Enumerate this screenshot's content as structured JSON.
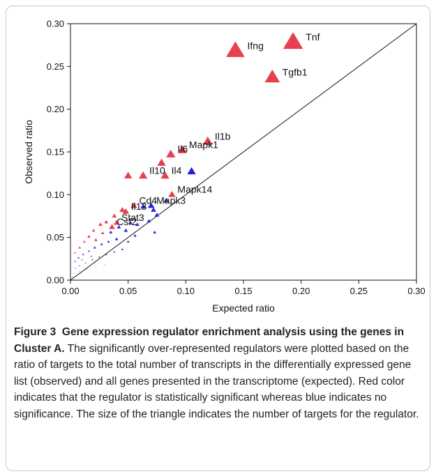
{
  "caption": {
    "label": "Figure 3",
    "title": "Gene expression regulator enrichment analysis using the genes in Cluster A.",
    "body": "The significantly over-represented regulators were plotted based on the ratio of targets to the total number of transcripts in the differentially expressed gene list (observed) and all genes presented in the transcriptome (expected). Red color indicates that the regulator is statistically significant whereas blue indicates no significance. The size of the triangle indicates the number of targets for the regulator."
  },
  "chart_data": {
    "type": "scatter",
    "xlabel": "Expected ratio",
    "ylabel": "Observed ratio",
    "xlim": [
      0,
      0.3
    ],
    "ylim": [
      0,
      0.3
    ],
    "xticks": [
      "0.00",
      "0.05",
      "0.10",
      "0.15",
      "0.20",
      "0.25",
      "0.30"
    ],
    "yticks": [
      "0.00",
      "0.05",
      "0.10",
      "0.15",
      "0.20",
      "0.25",
      "0.30"
    ],
    "diagonal": [
      [
        0,
        0
      ],
      [
        0.3,
        0.3
      ]
    ],
    "colors": {
      "significant": "#e8404f",
      "not_significant": "#2222dd"
    },
    "labeled_points": [
      {
        "label": "Tnf",
        "x": 0.193,
        "y": 0.278,
        "size": 3.0,
        "sig": true
      },
      {
        "label": "Ifng",
        "x": 0.143,
        "y": 0.268,
        "size": 2.8,
        "sig": true
      },
      {
        "label": "Tgfb1",
        "x": 0.175,
        "y": 0.237,
        "size": 2.3,
        "sig": true
      },
      {
        "label": "Il1b",
        "x": 0.119,
        "y": 0.162,
        "size": 1.5,
        "sig": true
      },
      {
        "label": "Mapk1",
        "x": 0.097,
        "y": 0.152,
        "size": 1.4,
        "sig": true
      },
      {
        "label": "Il6",
        "x": 0.087,
        "y": 0.147,
        "size": 1.4,
        "sig": true
      },
      {
        "label": "Il10",
        "x": 0.063,
        "y": 0.122,
        "size": 1.3,
        "sig": true
      },
      {
        "label": "Il4",
        "x": 0.082,
        "y": 0.122,
        "size": 1.3,
        "sig": true
      },
      {
        "label": "Mapk14",
        "x": 0.088,
        "y": 0.1,
        "size": 1.1,
        "sig": true
      },
      {
        "label": "Mapk3",
        "x": 0.07,
        "y": 0.087,
        "size": 1.0,
        "sig": false
      },
      {
        "label": "Cd4",
        "x": 0.055,
        "y": 0.087,
        "size": 1.0,
        "sig": true
      },
      {
        "label": "Il13",
        "x": 0.048,
        "y": 0.08,
        "size": 1.0,
        "sig": true
      },
      {
        "label": "Stat3",
        "x": 0.04,
        "y": 0.067,
        "size": 0.9,
        "sig": true
      },
      {
        "label": "Csf2",
        "x": 0.036,
        "y": 0.062,
        "size": 0.9,
        "sig": true
      }
    ],
    "points": [
      {
        "x": 0.079,
        "y": 0.137,
        "size": 1.3,
        "sig": true
      },
      {
        "x": 0.05,
        "y": 0.122,
        "size": 1.2,
        "sig": true
      },
      {
        "x": 0.105,
        "y": 0.127,
        "size": 1.3,
        "sig": false
      },
      {
        "x": 0.072,
        "y": 0.082,
        "size": 0.8,
        "sig": false
      },
      {
        "x": 0.075,
        "y": 0.076,
        "size": 0.7,
        "sig": false
      },
      {
        "x": 0.083,
        "y": 0.093,
        "size": 0.8,
        "sig": false
      },
      {
        "x": 0.063,
        "y": 0.086,
        "size": 0.8,
        "sig": false
      },
      {
        "x": 0.068,
        "y": 0.069,
        "size": 0.6,
        "sig": false
      },
      {
        "x": 0.073,
        "y": 0.056,
        "size": 0.5,
        "sig": false
      },
      {
        "x": 0.045,
        "y": 0.082,
        "size": 0.9,
        "sig": true
      },
      {
        "x": 0.038,
        "y": 0.075,
        "size": 0.7,
        "sig": true
      },
      {
        "x": 0.031,
        "y": 0.068,
        "size": 0.6,
        "sig": true
      },
      {
        "x": 0.026,
        "y": 0.065,
        "size": 0.6,
        "sig": true
      },
      {
        "x": 0.02,
        "y": 0.058,
        "size": 0.5,
        "sig": true
      },
      {
        "x": 0.016,
        "y": 0.051,
        "size": 0.5,
        "sig": true
      },
      {
        "x": 0.012,
        "y": 0.045,
        "size": 0.4,
        "sig": true
      },
      {
        "x": 0.008,
        "y": 0.038,
        "size": 0.4,
        "sig": true
      },
      {
        "x": 0.004,
        "y": 0.032,
        "size": 0.3,
        "sig": true
      },
      {
        "x": 0.022,
        "y": 0.047,
        "size": 0.5,
        "sig": true
      },
      {
        "x": 0.028,
        "y": 0.055,
        "size": 0.5,
        "sig": true
      },
      {
        "x": 0.035,
        "y": 0.056,
        "size": 0.5,
        "sig": false
      },
      {
        "x": 0.042,
        "y": 0.062,
        "size": 0.6,
        "sig": false
      },
      {
        "x": 0.048,
        "y": 0.058,
        "size": 0.6,
        "sig": false
      },
      {
        "x": 0.052,
        "y": 0.067,
        "size": 0.6,
        "sig": false
      },
      {
        "x": 0.058,
        "y": 0.065,
        "size": 0.6,
        "sig": false
      },
      {
        "x": 0.04,
        "y": 0.048,
        "size": 0.5,
        "sig": false
      },
      {
        "x": 0.033,
        "y": 0.045,
        "size": 0.4,
        "sig": false
      },
      {
        "x": 0.027,
        "y": 0.042,
        "size": 0.4,
        "sig": false
      },
      {
        "x": 0.021,
        "y": 0.038,
        "size": 0.4,
        "sig": false
      },
      {
        "x": 0.016,
        "y": 0.034,
        "size": 0.3,
        "sig": false
      },
      {
        "x": 0.011,
        "y": 0.03,
        "size": 0.3,
        "sig": false
      },
      {
        "x": 0.007,
        "y": 0.026,
        "size": 0.3,
        "sig": false
      },
      {
        "x": 0.004,
        "y": 0.022,
        "size": 0.25,
        "sig": false
      },
      {
        "x": 0.045,
        "y": 0.036,
        "size": 0.35,
        "sig": false
      },
      {
        "x": 0.038,
        "y": 0.033,
        "size": 0.3,
        "sig": false
      },
      {
        "x": 0.031,
        "y": 0.03,
        "size": 0.3,
        "sig": false
      },
      {
        "x": 0.025,
        "y": 0.027,
        "size": 0.25,
        "sig": false
      },
      {
        "x": 0.019,
        "y": 0.024,
        "size": 0.25,
        "sig": false
      },
      {
        "x": 0.013,
        "y": 0.02,
        "size": 0.2,
        "sig": false
      },
      {
        "x": 0.008,
        "y": 0.017,
        "size": 0.2,
        "sig": false
      },
      {
        "x": 0.004,
        "y": 0.014,
        "size": 0.2,
        "sig": false
      },
      {
        "x": 0.03,
        "y": 0.018,
        "size": 0.15,
        "sig": false
      },
      {
        "x": 0.022,
        "y": 0.016,
        "size": 0.15,
        "sig": false
      },
      {
        "x": 0.014,
        "y": 0.013,
        "size": 0.15,
        "sig": false
      },
      {
        "x": 0.008,
        "y": 0.01,
        "size": 0.15,
        "sig": false
      },
      {
        "x": 0.003,
        "y": 0.008,
        "size": 0.15,
        "sig": false
      },
      {
        "x": 0.002,
        "y": 0.004,
        "size": 0.15,
        "sig": false
      },
      {
        "x": 0.05,
        "y": 0.045,
        "size": 0.4,
        "sig": false
      },
      {
        "x": 0.056,
        "y": 0.052,
        "size": 0.45,
        "sig": false
      },
      {
        "x": 0.018,
        "y": 0.028,
        "size": 0.3,
        "sig": true
      },
      {
        "x": 0.01,
        "y": 0.024,
        "size": 0.25,
        "sig": true
      }
    ]
  }
}
